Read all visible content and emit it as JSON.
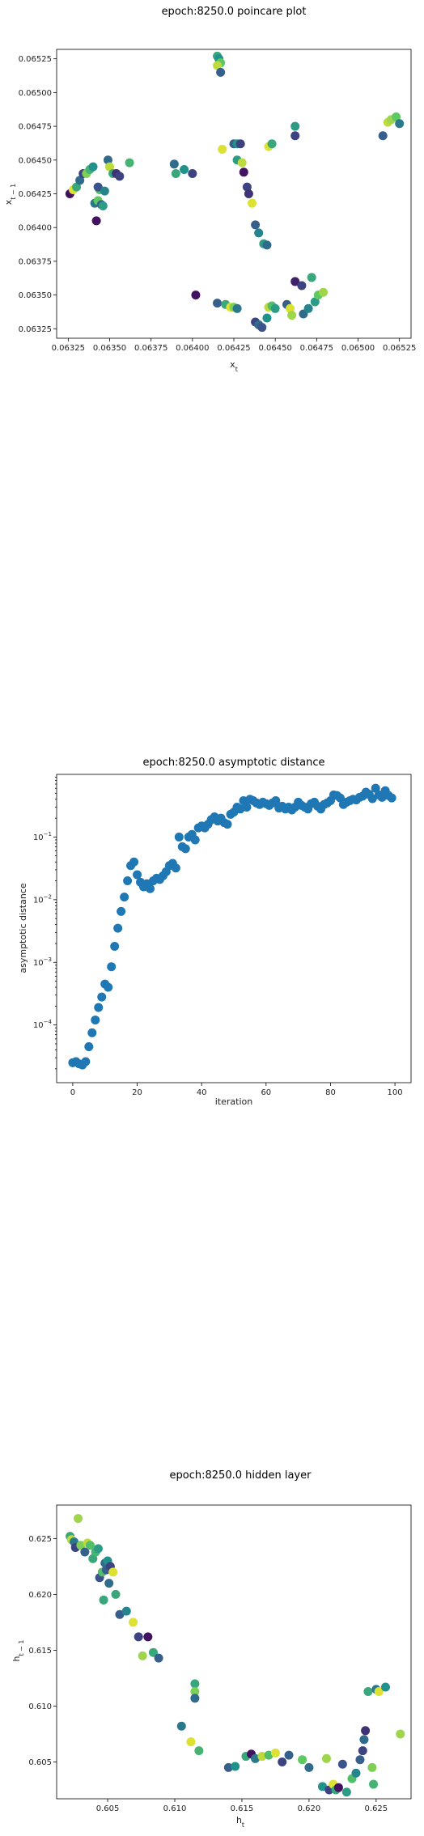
{
  "chart_data": [
    {
      "type": "scatter",
      "title": "epoch:8250.0 poincare plot",
      "xlabel": "x_t",
      "ylabel": "x_{t-1}",
      "xlim": [
        0.06318,
        0.06532
      ],
      "ylim": [
        0.06318,
        0.06532
      ],
      "xticks": [
        "0.06325",
        "0.06350",
        "0.06375",
        "0.06400",
        "0.06425",
        "0.06450",
        "0.06475",
        "0.06500",
        "0.06525"
      ],
      "yticks": [
        "0.06325",
        "0.06350",
        "0.06375",
        "0.06400",
        "0.06425",
        "0.06450",
        "0.06475",
        "0.06500",
        "0.06525"
      ],
      "colormap": "viridis",
      "points": [
        [
          0.06326,
          0.06425,
          0.05
        ],
        [
          0.06328,
          0.06428,
          0.95
        ],
        [
          0.0633,
          0.0643,
          0.6
        ],
        [
          0.06332,
          0.06435,
          0.35
        ],
        [
          0.06334,
          0.0644,
          0.2
        ],
        [
          0.06336,
          0.0644,
          0.8
        ],
        [
          0.06338,
          0.06443,
          0.65
        ],
        [
          0.0634,
          0.06445,
          0.5
        ],
        [
          0.06341,
          0.06418,
          0.4
        ],
        [
          0.06342,
          0.06405,
          0.05
        ],
        [
          0.06343,
          0.0642,
          0.75
        ],
        [
          0.06344,
          0.06428,
          0.7
        ],
        [
          0.06345,
          0.06417,
          0.3
        ],
        [
          0.06346,
          0.06416,
          0.55
        ],
        [
          0.06343,
          0.0643,
          0.25
        ],
        [
          0.06347,
          0.06427,
          0.45
        ],
        [
          0.06349,
          0.0645,
          0.35
        ],
        [
          0.0635,
          0.06445,
          0.9
        ],
        [
          0.06352,
          0.0644,
          0.6
        ],
        [
          0.06354,
          0.0644,
          0.15
        ],
        [
          0.06356,
          0.06438,
          0.2
        ],
        [
          0.06362,
          0.06448,
          0.65
        ],
        [
          0.06389,
          0.06447,
          0.35
        ],
        [
          0.0639,
          0.0644,
          0.6
        ],
        [
          0.06395,
          0.06443,
          0.5
        ],
        [
          0.064,
          0.0644,
          0.2
        ],
        [
          0.06415,
          0.06527,
          0.6
        ],
        [
          0.06416,
          0.06525,
          0.5
        ],
        [
          0.06417,
          0.06522,
          0.75
        ],
        [
          0.06415,
          0.0652,
          0.9
        ],
        [
          0.06417,
          0.06515,
          0.3
        ],
        [
          0.06418,
          0.06458,
          0.95
        ],
        [
          0.06425,
          0.06462,
          0.3
        ],
        [
          0.06427,
          0.06462,
          0.5
        ],
        [
          0.06429,
          0.06462,
          0.2
        ],
        [
          0.06427,
          0.0645,
          0.55
        ],
        [
          0.0643,
          0.06448,
          0.9
        ],
        [
          0.06431,
          0.06441,
          0.05
        ],
        [
          0.06433,
          0.0643,
          0.2
        ],
        [
          0.06434,
          0.06425,
          0.15
        ],
        [
          0.06436,
          0.06418,
          0.95
        ],
        [
          0.06438,
          0.06402,
          0.3
        ],
        [
          0.0644,
          0.06396,
          0.45
        ],
        [
          0.06443,
          0.06388,
          0.55
        ],
        [
          0.06445,
          0.06387,
          0.35
        ],
        [
          0.06446,
          0.0646,
          0.95
        ],
        [
          0.06448,
          0.06462,
          0.6
        ],
        [
          0.06462,
          0.06475,
          0.55
        ],
        [
          0.06462,
          0.06468,
          0.2
        ],
        [
          0.06515,
          0.06468,
          0.3
        ],
        [
          0.06518,
          0.06478,
          0.9
        ],
        [
          0.0652,
          0.0648,
          0.85
        ],
        [
          0.06523,
          0.06482,
          0.75
        ],
        [
          0.06525,
          0.06477,
          0.4
        ],
        [
          0.06402,
          0.0635,
          0.05
        ],
        [
          0.06415,
          0.06344,
          0.3
        ],
        [
          0.0642,
          0.06343,
          0.6
        ],
        [
          0.06423,
          0.06341,
          0.95
        ],
        [
          0.06425,
          0.06341,
          0.8
        ],
        [
          0.06427,
          0.0634,
          0.4
        ],
        [
          0.06438,
          0.0633,
          0.2
        ],
        [
          0.0644,
          0.06328,
          0.35
        ],
        [
          0.06442,
          0.06326,
          0.25
        ],
        [
          0.06445,
          0.06333,
          0.5
        ],
        [
          0.06446,
          0.06341,
          0.9
        ],
        [
          0.06448,
          0.06342,
          0.7
        ],
        [
          0.0645,
          0.0634,
          0.55
        ],
        [
          0.06457,
          0.06343,
          0.3
        ],
        [
          0.06459,
          0.0634,
          0.95
        ],
        [
          0.0646,
          0.06335,
          0.85
        ],
        [
          0.06462,
          0.0636,
          0.1
        ],
        [
          0.06466,
          0.06357,
          0.2
        ],
        [
          0.06467,
          0.06336,
          0.35
        ],
        [
          0.0647,
          0.0634,
          0.45
        ],
        [
          0.06472,
          0.06363,
          0.6
        ],
        [
          0.06474,
          0.06345,
          0.55
        ],
        [
          0.06476,
          0.0635,
          0.75
        ],
        [
          0.06479,
          0.06352,
          0.85
        ]
      ]
    },
    {
      "type": "scatter",
      "title": "epoch:8250.0 asymptotic distance",
      "xlabel": "iteration",
      "ylabel": "asymptotic distance",
      "yscale": "log",
      "xlim": [
        -5,
        105
      ],
      "ylim": [
        1.2e-05,
        1.0
      ],
      "xticks": [
        0,
        20,
        40,
        60,
        80,
        100
      ],
      "yticks": [
        {
          "value": 0.0001,
          "base": "10",
          "exp": "−4"
        },
        {
          "value": 0.001,
          "base": "10",
          "exp": "−3"
        },
        {
          "value": 0.01,
          "base": "10",
          "exp": "−2"
        },
        {
          "value": 0.1,
          "base": "10",
          "exp": "−1"
        }
      ],
      "color": "#1f77b4",
      "x": [
        0,
        1,
        2,
        3,
        4,
        5,
        6,
        7,
        8,
        9,
        10,
        11,
        12,
        13,
        14,
        15,
        16,
        17,
        18,
        19,
        20,
        21,
        22,
        23,
        24,
        25,
        26,
        27,
        28,
        29,
        30,
        31,
        32,
        33,
        34,
        35,
        36,
        37,
        38,
        39,
        40,
        41,
        42,
        43,
        44,
        45,
        46,
        47,
        48,
        49,
        50,
        51,
        52,
        53,
        54,
        55,
        56,
        57,
        58,
        59,
        60,
        61,
        62,
        63,
        64,
        65,
        66,
        67,
        68,
        69,
        70,
        71,
        72,
        73,
        74,
        75,
        76,
        77,
        78,
        79,
        80,
        81,
        82,
        83,
        84,
        85,
        86,
        87,
        88,
        89,
        90,
        91,
        92,
        93,
        94,
        95,
        96,
        97,
        98,
        99
      ],
      "y": [
        2.5e-05,
        2.6e-05,
        2.4e-05,
        2.3e-05,
        2.6e-05,
        4.5e-05,
        7.5e-05,
        0.00012,
        0.00019,
        0.00028,
        0.00045,
        0.0004,
        0.00085,
        0.0018,
        0.0035,
        0.0065,
        0.011,
        0.02,
        0.035,
        0.04,
        0.025,
        0.019,
        0.016,
        0.018,
        0.015,
        0.02,
        0.022,
        0.021,
        0.024,
        0.028,
        0.035,
        0.038,
        0.032,
        0.1,
        0.07,
        0.065,
        0.1,
        0.11,
        0.09,
        0.14,
        0.15,
        0.14,
        0.16,
        0.19,
        0.21,
        0.18,
        0.2,
        0.17,
        0.16,
        0.23,
        0.25,
        0.3,
        0.28,
        0.38,
        0.3,
        0.4,
        0.38,
        0.35,
        0.33,
        0.36,
        0.34,
        0.32,
        0.35,
        0.38,
        0.29,
        0.31,
        0.28,
        0.3,
        0.27,
        0.3,
        0.36,
        0.32,
        0.3,
        0.28,
        0.34,
        0.36,
        0.31,
        0.28,
        0.33,
        0.35,
        0.38,
        0.47,
        0.46,
        0.42,
        0.33,
        0.36,
        0.38,
        0.4,
        0.39,
        0.43,
        0.45,
        0.52,
        0.48,
        0.41,
        0.6,
        0.47,
        0.43,
        0.55,
        0.46,
        0.42
      ]
    },
    {
      "type": "scatter",
      "title": "epoch:8250.0 hidden layer",
      "xlabel": "h_t",
      "ylabel": "h_{t-1}",
      "xlim": [
        0.6012,
        0.6276
      ],
      "ylim": [
        0.6017,
        0.628
      ],
      "xticks": [
        "0.605",
        "0.610",
        "0.615",
        "0.620",
        "0.625"
      ],
      "yticks": [
        "0.605",
        "0.610",
        "0.615",
        "0.620",
        "0.625"
      ],
      "colormap": "viridis",
      "points": [
        [
          0.6022,
          0.6252,
          0.6
        ],
        [
          0.6023,
          0.6249,
          0.9
        ],
        [
          0.6025,
          0.6247,
          0.4
        ],
        [
          0.6026,
          0.6242,
          0.2
        ],
        [
          0.6028,
          0.6268,
          0.85
        ],
        [
          0.603,
          0.6244,
          0.8
        ],
        [
          0.6033,
          0.6238,
          0.3
        ],
        [
          0.6035,
          0.6246,
          0.9
        ],
        [
          0.6037,
          0.6244,
          0.7
        ],
        [
          0.6039,
          0.6232,
          0.6
        ],
        [
          0.6041,
          0.6238,
          0.65
        ],
        [
          0.6043,
          0.6241,
          0.55
        ],
        [
          0.6044,
          0.6215,
          0.25
        ],
        [
          0.6046,
          0.622,
          0.7
        ],
        [
          0.6048,
          0.6228,
          0.35
        ],
        [
          0.6049,
          0.6222,
          0.3
        ],
        [
          0.605,
          0.623,
          0.5
        ],
        [
          0.6052,
          0.6225,
          0.2
        ],
        [
          0.6047,
          0.6195,
          0.6
        ],
        [
          0.6051,
          0.621,
          0.35
        ],
        [
          0.6054,
          0.622,
          0.95
        ],
        [
          0.6056,
          0.62,
          0.6
        ],
        [
          0.6059,
          0.6182,
          0.3
        ],
        [
          0.6064,
          0.6185,
          0.45
        ],
        [
          0.6069,
          0.6175,
          0.95
        ],
        [
          0.6073,
          0.6162,
          0.2
        ],
        [
          0.6076,
          0.6145,
          0.85
        ],
        [
          0.608,
          0.6162,
          0.05
        ],
        [
          0.6084,
          0.6148,
          0.6
        ],
        [
          0.6088,
          0.6143,
          0.3
        ],
        [
          0.6105,
          0.6082,
          0.4
        ],
        [
          0.6112,
          0.6068,
          0.95
        ],
        [
          0.6115,
          0.612,
          0.6
        ],
        [
          0.6115,
          0.6113,
          0.8
        ],
        [
          0.6115,
          0.6107,
          0.35
        ],
        [
          0.6118,
          0.606,
          0.65
        ],
        [
          0.614,
          0.6045,
          0.3
        ],
        [
          0.6145,
          0.6046,
          0.5
        ],
        [
          0.6153,
          0.6055,
          0.6
        ],
        [
          0.6157,
          0.6057,
          0.05
        ],
        [
          0.616,
          0.6053,
          0.4
        ],
        [
          0.6165,
          0.6055,
          0.9
        ],
        [
          0.617,
          0.6056,
          0.7
        ],
        [
          0.6175,
          0.6058,
          0.95
        ],
        [
          0.618,
          0.605,
          0.2
        ],
        [
          0.6185,
          0.6056,
          0.3
        ],
        [
          0.6195,
          0.6052,
          0.75
        ],
        [
          0.62,
          0.6045,
          0.35
        ],
        [
          0.621,
          0.6028,
          0.5
        ],
        [
          0.6213,
          0.6053,
          0.85
        ],
        [
          0.6215,
          0.6025,
          0.2
        ],
        [
          0.6218,
          0.603,
          0.95
        ],
        [
          0.622,
          0.6025,
          0.6
        ],
        [
          0.6222,
          0.6027,
          0.05
        ],
        [
          0.6225,
          0.6048,
          0.25
        ],
        [
          0.6228,
          0.6023,
          0.55
        ],
        [
          0.6232,
          0.6035,
          0.7
        ],
        [
          0.6235,
          0.604,
          0.45
        ],
        [
          0.6238,
          0.6052,
          0.3
        ],
        [
          0.624,
          0.606,
          0.2
        ],
        [
          0.6241,
          0.607,
          0.35
        ],
        [
          0.6242,
          0.6078,
          0.15
        ],
        [
          0.6244,
          0.6113,
          0.6
        ],
        [
          0.6247,
          0.6045,
          0.8
        ],
        [
          0.6248,
          0.603,
          0.65
        ],
        [
          0.625,
          0.6115,
          0.4
        ],
        [
          0.6252,
          0.6113,
          0.95
        ],
        [
          0.6257,
          0.6117,
          0.5
        ],
        [
          0.6268,
          0.6075,
          0.85
        ]
      ]
    }
  ]
}
